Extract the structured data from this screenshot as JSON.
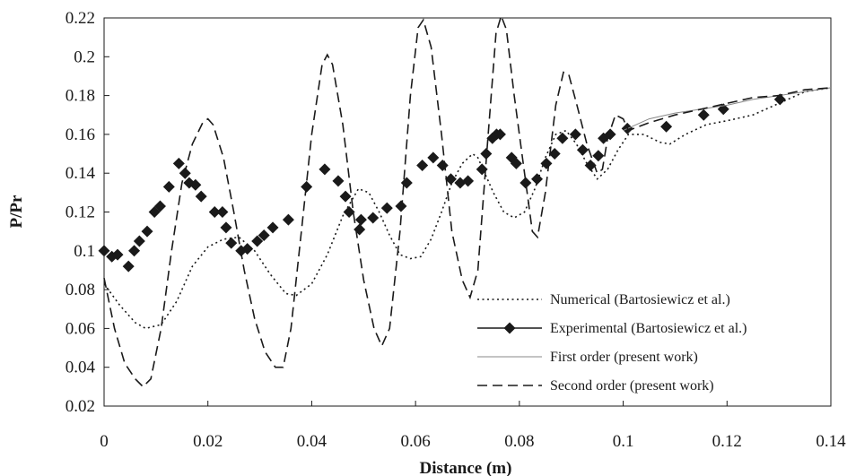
{
  "chart_data": {
    "type": "line",
    "title": "",
    "xlabel": "Distance (m)",
    "ylabel": "P/Pr",
    "xlim": [
      0,
      0.14
    ],
    "ylim": [
      0.02,
      0.22
    ],
    "x_ticks": [
      "0",
      "0.02",
      "0.04",
      "0.06",
      "0.08",
      "0.1",
      "0.12",
      "0.14"
    ],
    "y_ticks": [
      "0.02",
      "0.04",
      "0.06",
      "0.08",
      "0.1",
      "0.12",
      "0.14",
      "0.16",
      "0.18",
      "0.2",
      "0.22"
    ],
    "grid": false,
    "legend_position": "lower-right",
    "series": [
      {
        "name": "Numerical (Bartosiewicz et al.)",
        "style": "dotted",
        "color": "#1a1a1a",
        "points": [
          [
            0,
            0.083
          ],
          [
            0.003,
            0.072
          ],
          [
            0.006,
            0.063
          ],
          [
            0.008,
            0.06
          ],
          [
            0.011,
            0.062
          ],
          [
            0.014,
            0.074
          ],
          [
            0.017,
            0.092
          ],
          [
            0.02,
            0.102
          ],
          [
            0.023,
            0.106
          ],
          [
            0.026,
            0.107
          ],
          [
            0.029,
            0.1
          ],
          [
            0.032,
            0.088
          ],
          [
            0.035,
            0.078
          ],
          [
            0.037,
            0.077
          ],
          [
            0.04,
            0.083
          ],
          [
            0.043,
            0.098
          ],
          [
            0.046,
            0.118
          ],
          [
            0.049,
            0.132
          ],
          [
            0.051,
            0.13
          ],
          [
            0.053,
            0.12
          ],
          [
            0.055,
            0.108
          ],
          [
            0.057,
            0.098
          ],
          [
            0.059,
            0.096
          ],
          [
            0.061,
            0.097
          ],
          [
            0.063,
            0.106
          ],
          [
            0.065,
            0.12
          ],
          [
            0.067,
            0.135
          ],
          [
            0.069,
            0.145
          ],
          [
            0.071,
            0.15
          ],
          [
            0.072,
            0.148
          ],
          [
            0.073,
            0.142
          ],
          [
            0.075,
            0.13
          ],
          [
            0.077,
            0.12
          ],
          [
            0.079,
            0.117
          ],
          [
            0.081,
            0.12
          ],
          [
            0.083,
            0.132
          ],
          [
            0.085,
            0.148
          ],
          [
            0.087,
            0.16
          ],
          [
            0.089,
            0.162
          ],
          [
            0.091,
            0.155
          ],
          [
            0.093,
            0.145
          ],
          [
            0.095,
            0.137
          ],
          [
            0.097,
            0.142
          ],
          [
            0.099,
            0.152
          ],
          [
            0.101,
            0.16
          ],
          [
            0.104,
            0.16
          ],
          [
            0.107,
            0.156
          ],
          [
            0.109,
            0.155
          ],
          [
            0.112,
            0.16
          ],
          [
            0.116,
            0.165
          ],
          [
            0.12,
            0.167
          ],
          [
            0.125,
            0.17
          ],
          [
            0.13,
            0.176
          ],
          [
            0.135,
            0.182
          ],
          [
            0.14,
            0.184
          ]
        ]
      },
      {
        "name": "Experimental (Bartosiewicz et al.)",
        "style": "solid-markers",
        "marker": "diamond",
        "color": "#1a1a1a",
        "points": [
          [
            0,
            0.1
          ],
          [
            0.0015,
            0.097
          ],
          [
            0.0026,
            0.098
          ],
          [
            0.0047,
            0.092
          ],
          [
            0.0058,
            0.1
          ],
          [
            0.0068,
            0.105
          ],
          [
            0.0083,
            0.11
          ],
          [
            0.0097,
            0.12
          ],
          [
            0.0108,
            0.123
          ],
          [
            0.0125,
            0.133
          ],
          [
            0.0144,
            0.145
          ],
          [
            0.0156,
            0.14
          ],
          [
            0.0164,
            0.135
          ],
          [
            0.0176,
            0.134
          ],
          [
            0.0187,
            0.128
          ],
          [
            0.0213,
            0.12
          ],
          [
            0.0228,
            0.12
          ],
          [
            0.0235,
            0.112
          ],
          [
            0.0245,
            0.104
          ],
          [
            0.0264,
            0.1
          ],
          [
            0.0276,
            0.101
          ],
          [
            0.0295,
            0.105
          ],
          [
            0.0308,
            0.108
          ],
          [
            0.0325,
            0.112
          ],
          [
            0.0355,
            0.116
          ],
          [
            0.039,
            0.133
          ],
          [
            0.0425,
            0.142
          ],
          [
            0.0451,
            0.136
          ],
          [
            0.0465,
            0.128
          ],
          [
            0.0472,
            0.12
          ],
          [
            0.0492,
            0.111
          ],
          [
            0.0495,
            0.116
          ],
          [
            0.0518,
            0.117
          ],
          [
            0.0545,
            0.122
          ],
          [
            0.0572,
            0.123
          ],
          [
            0.0583,
            0.135
          ],
          [
            0.0613,
            0.144
          ],
          [
            0.0634,
            0.148
          ],
          [
            0.0652,
            0.144
          ],
          [
            0.0668,
            0.137
          ],
          [
            0.0686,
            0.135
          ],
          [
            0.0701,
            0.136
          ],
          [
            0.0728,
            0.142
          ],
          [
            0.0736,
            0.15
          ],
          [
            0.0748,
            0.158
          ],
          [
            0.0756,
            0.16
          ],
          [
            0.0763,
            0.16
          ],
          [
            0.0785,
            0.148
          ],
          [
            0.0794,
            0.145
          ],
          [
            0.0812,
            0.135
          ],
          [
            0.0834,
            0.137
          ],
          [
            0.0852,
            0.145
          ],
          [
            0.0868,
            0.15
          ],
          [
            0.0883,
            0.158
          ],
          [
            0.0908,
            0.16
          ],
          [
            0.0922,
            0.152
          ],
          [
            0.0937,
            0.144
          ],
          [
            0.0952,
            0.149
          ],
          [
            0.0962,
            0.158
          ],
          [
            0.0975,
            0.16
          ],
          [
            0.1008,
            0.163
          ],
          [
            0.1083,
            0.164
          ],
          [
            0.1155,
            0.17
          ],
          [
            0.1193,
            0.173
          ],
          [
            0.1302,
            0.178
          ]
        ]
      },
      {
        "name": "First order (present work)",
        "style": "thin-solid",
        "color": "#888888",
        "points": [
          [
            0.1,
            0.162
          ],
          [
            0.105,
            0.168
          ],
          [
            0.11,
            0.171
          ],
          [
            0.115,
            0.173
          ],
          [
            0.12,
            0.175
          ],
          [
            0.125,
            0.178
          ],
          [
            0.13,
            0.18
          ],
          [
            0.135,
            0.182
          ],
          [
            0.14,
            0.184
          ]
        ]
      },
      {
        "name": "Second order (present work)",
        "style": "dashed",
        "color": "#1a1a1a",
        "points": [
          [
            0,
            0.086
          ],
          [
            0.002,
            0.06
          ],
          [
            0.004,
            0.042
          ],
          [
            0.006,
            0.034
          ],
          [
            0.0075,
            0.03
          ],
          [
            0.009,
            0.034
          ],
          [
            0.011,
            0.06
          ],
          [
            0.013,
            0.1
          ],
          [
            0.015,
            0.135
          ],
          [
            0.017,
            0.155
          ],
          [
            0.019,
            0.166
          ],
          [
            0.02,
            0.168
          ],
          [
            0.021,
            0.165
          ],
          [
            0.023,
            0.148
          ],
          [
            0.025,
            0.12
          ],
          [
            0.027,
            0.09
          ],
          [
            0.029,
            0.065
          ],
          [
            0.031,
            0.048
          ],
          [
            0.033,
            0.04
          ],
          [
            0.0345,
            0.04
          ],
          [
            0.036,
            0.06
          ],
          [
            0.038,
            0.11
          ],
          [
            0.04,
            0.16
          ],
          [
            0.042,
            0.196
          ],
          [
            0.043,
            0.201
          ],
          [
            0.044,
            0.196
          ],
          [
            0.046,
            0.165
          ],
          [
            0.048,
            0.12
          ],
          [
            0.05,
            0.085
          ],
          [
            0.052,
            0.06
          ],
          [
            0.0535,
            0.051
          ],
          [
            0.055,
            0.06
          ],
          [
            0.057,
            0.11
          ],
          [
            0.059,
            0.18
          ],
          [
            0.0605,
            0.215
          ],
          [
            0.0615,
            0.219
          ],
          [
            0.063,
            0.205
          ],
          [
            0.065,
            0.16
          ],
          [
            0.067,
            0.11
          ],
          [
            0.069,
            0.085
          ],
          [
            0.0705,
            0.076
          ],
          [
            0.072,
            0.09
          ],
          [
            0.074,
            0.16
          ],
          [
            0.0755,
            0.212
          ],
          [
            0.0765,
            0.221
          ],
          [
            0.0775,
            0.214
          ],
          [
            0.079,
            0.18
          ],
          [
            0.081,
            0.14
          ],
          [
            0.0825,
            0.11
          ],
          [
            0.0835,
            0.107
          ],
          [
            0.085,
            0.13
          ],
          [
            0.087,
            0.175
          ],
          [
            0.0885,
            0.192
          ],
          [
            0.0895,
            0.191
          ],
          [
            0.091,
            0.176
          ],
          [
            0.093,
            0.155
          ],
          [
            0.095,
            0.14
          ],
          [
            0.096,
            0.142
          ],
          [
            0.097,
            0.158
          ],
          [
            0.0985,
            0.17
          ],
          [
            0.1,
            0.168
          ],
          [
            0.101,
            0.162
          ],
          [
            0.105,
            0.166
          ],
          [
            0.11,
            0.17
          ],
          [
            0.115,
            0.173
          ],
          [
            0.12,
            0.176
          ],
          [
            0.125,
            0.179
          ],
          [
            0.13,
            0.18
          ],
          [
            0.135,
            0.183
          ],
          [
            0.14,
            0.184
          ]
        ]
      }
    ]
  }
}
